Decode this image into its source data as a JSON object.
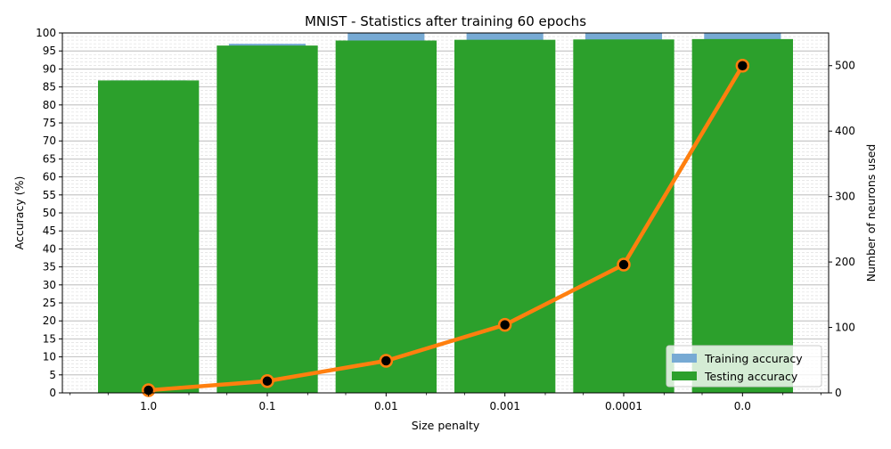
{
  "chart_data": {
    "type": "bar",
    "title": "MNIST - Statistics after training 60 epochs",
    "xlabel": "Size penalty",
    "ylabel": "Accuracy (%)",
    "y2label": "Number of neurons used",
    "categories": [
      "1.0",
      "0.1",
      "0.01",
      "0.001",
      "0.0001",
      "0.0"
    ],
    "ylim": [
      0,
      100
    ],
    "yticks": [
      0,
      5,
      10,
      15,
      20,
      25,
      30,
      35,
      40,
      45,
      50,
      55,
      60,
      65,
      70,
      75,
      80,
      85,
      90,
      95,
      100
    ],
    "y2lim": [
      0,
      550
    ],
    "y2ticks": [
      0,
      100,
      200,
      300,
      400,
      500
    ],
    "grid": true,
    "legend_position": "bottom-right",
    "series": [
      {
        "name": "Training accuracy",
        "kind": "bar",
        "color": "#77aad4",
        "values": [
          86.8,
          97.0,
          100.0,
          100.0,
          100.0,
          100.0
        ]
      },
      {
        "name": "Testing accuracy",
        "kind": "bar",
        "color": "#2ca02c",
        "values": [
          86.8,
          96.5,
          97.9,
          98.1,
          98.2,
          98.3
        ]
      },
      {
        "name": "",
        "kind": "line",
        "axis": "right",
        "color": "#ff7f0e",
        "marker_color": "#000000",
        "values": [
          4,
          18,
          49,
          104,
          196,
          500
        ]
      }
    ]
  }
}
